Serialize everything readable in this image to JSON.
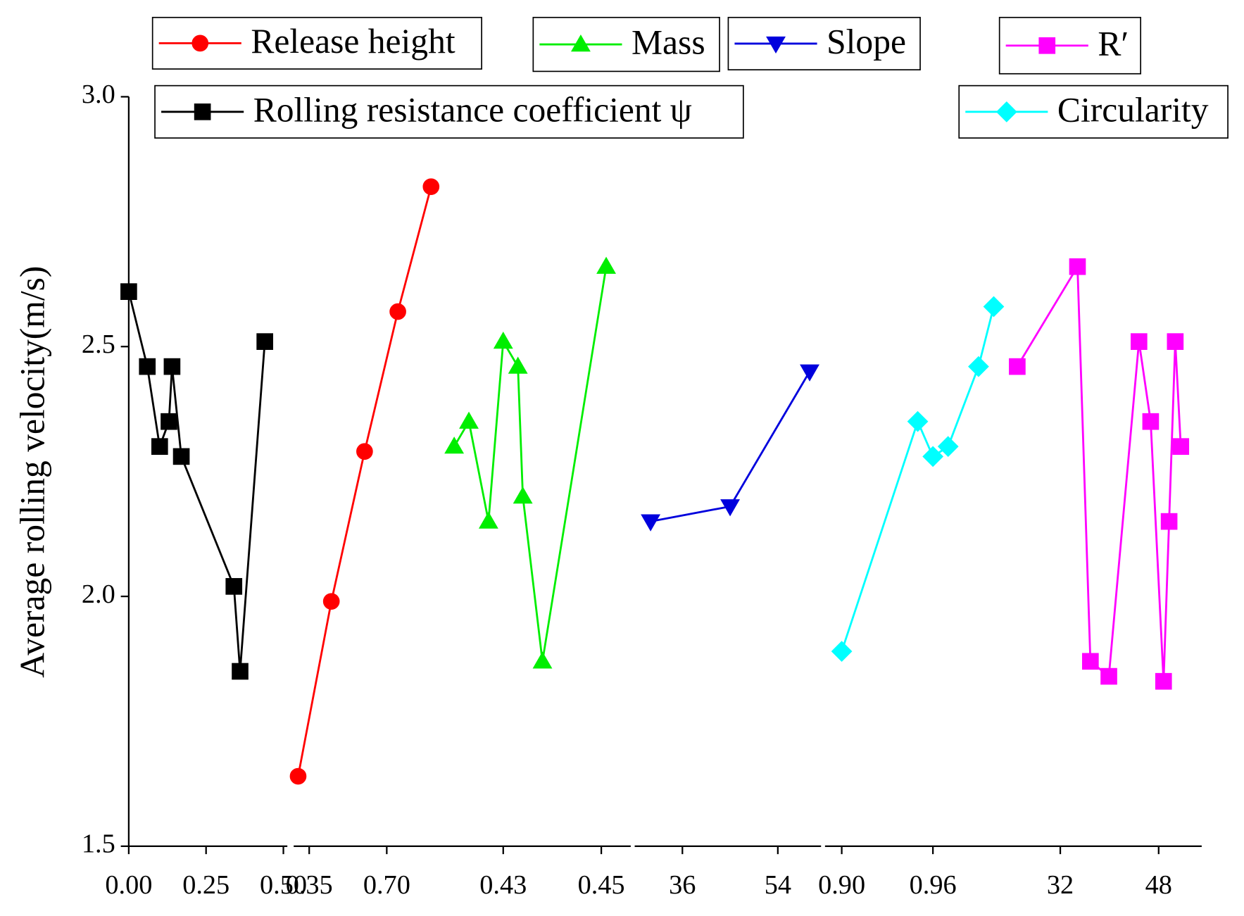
{
  "chart_data": {
    "type": "line",
    "y_label": "Average rolling velocity(m/s)",
    "ylim": [
      1.5,
      3.0
    ],
    "yticks": [
      1.5,
      {
        "value": 2,
        "label": "2.0"
      },
      2.5,
      {
        "value": 3,
        "label": "3.0"
      }
    ],
    "series": [
      {
        "name": "Rolling resistance coefficient ψ",
        "color": "#000000",
        "marker": "square",
        "x": [
          0,
          0.06,
          0.1,
          0.13,
          0.14,
          0.17,
          0.34,
          0.36,
          0.44
        ],
        "values": [
          2.61,
          2.46,
          2.3,
          2.35,
          2.46,
          2.28,
          2.02,
          1.85,
          2.51
        ],
        "xlim": [
          0,
          0.5
        ],
        "xticks": [
          {
            "value": 0,
            "label": "0.00"
          },
          0.25,
          {
            "value": 0.5,
            "label": "0.50"
          }
        ]
      },
      {
        "name": "Release height",
        "color": "#ff0000",
        "marker": "circle",
        "x": [
          0.3,
          0.45,
          0.6,
          0.75,
          0.9
        ],
        "values": [
          1.64,
          1.99,
          2.29,
          2.57,
          2.82
        ],
        "xlim": [
          0.28,
          0.96
        ],
        "xticks": [
          0.35,
          {
            "value": 0.7,
            "label": "0.70"
          }
        ]
      },
      {
        "name": "Mass",
        "color": "#00ee00",
        "marker": "triangle-up",
        "x": [
          0.42,
          0.423,
          0.427,
          0.43,
          0.433,
          0.434,
          0.438,
          0.451
        ],
        "values": [
          2.3,
          2.35,
          2.15,
          2.51,
          2.46,
          2.2,
          1.87,
          2.66
        ],
        "xlim": [
          0.418,
          0.456
        ],
        "xticks": [
          0.43,
          0.45
        ]
      },
      {
        "name": "Slope",
        "color": "#0000dd",
        "marker": "triangle-down",
        "x": [
          30,
          45,
          60
        ],
        "values": [
          2.15,
          2.18,
          2.45
        ],
        "xlim": [
          27,
          62.6
        ],
        "xticks": [
          36,
          54
        ]
      },
      {
        "name": "Circularity",
        "color": "#00ffff",
        "marker": "diamond",
        "x": [
          0.9,
          0.95,
          0.96,
          0.97,
          0.99,
          1.0
        ],
        "values": [
          1.89,
          2.35,
          2.28,
          2.3,
          2.46,
          2.58
        ],
        "xlim": [
          0.889,
          1.009
        ],
        "xticks": [
          {
            "value": 0.9,
            "label": "0.90"
          },
          0.96
        ]
      },
      {
        "name": "R′",
        "color": "#ff00ff",
        "marker": "square",
        "x": [
          25.0,
          34.8,
          36.9,
          39.9,
          44.8,
          46.7,
          48.8,
          49.7,
          50.7,
          51.6
        ],
        "values": [
          2.46,
          2.66,
          1.87,
          1.84,
          2.51,
          2.35,
          1.83,
          2.15,
          2.51,
          2.3
        ],
        "xlim": [
          23.4,
          55
        ],
        "xticks": [
          32,
          48
        ]
      }
    ]
  }
}
